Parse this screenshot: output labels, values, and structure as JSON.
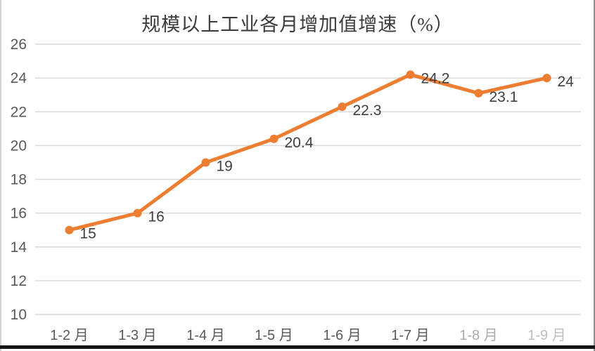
{
  "chart_data": {
    "type": "line",
    "title": "规模以上工业各月增加值增速（%）",
    "categories": [
      "1-2 月",
      "1-3 月",
      "1-4 月",
      "1-5 月",
      "1-6 月",
      "1-7 月",
      "1-8 月",
      "1-9 月"
    ],
    "values": [
      15,
      16,
      19,
      20.4,
      22.3,
      24.2,
      23.1,
      24
    ],
    "data_labels": [
      "15",
      "16",
      "19",
      "20.4",
      "22.3",
      "24.2",
      "23.1",
      "24"
    ],
    "xlabel": "",
    "ylabel": "",
    "ylim": [
      10,
      26
    ],
    "yticks": [
      10,
      12,
      14,
      16,
      18,
      20,
      22,
      24,
      26
    ],
    "ytick_step": 2,
    "grid": true,
    "legend": "none",
    "colors": {
      "series": "#ED7D31",
      "gridline": "#D9D9D9",
      "axis_text": "#595959",
      "data_label_text": "#3F3F3F",
      "title_text": "#3B3B3B"
    }
  }
}
